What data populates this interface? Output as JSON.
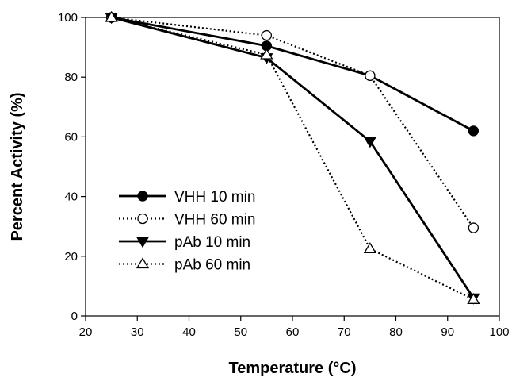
{
  "chart_data": {
    "type": "line",
    "title": "",
    "xlabel": "Temperature (°C)",
    "ylabel": "Percent Activity (%)",
    "xlim": [
      20,
      100
    ],
    "ylim": [
      0,
      100
    ],
    "xticks": [
      20,
      30,
      40,
      50,
      60,
      70,
      80,
      90,
      100
    ],
    "yticks": [
      0,
      20,
      40,
      60,
      80,
      100
    ],
    "grid": false,
    "legend_position": "lower-left",
    "series": [
      {
        "name": "VHH 10 min",
        "line": "solid",
        "marker": "circle-filled",
        "color": "#000000",
        "x": [
          25,
          55,
          75,
          95
        ],
        "y": [
          100,
          90.5,
          80.5,
          62
        ]
      },
      {
        "name": "VHH 60 min",
        "line": "dotted",
        "marker": "circle-open",
        "color": "#000000",
        "x": [
          25,
          55,
          75,
          95
        ],
        "y": [
          100,
          94,
          80.5,
          29.5
        ]
      },
      {
        "name": "pAb 10 min",
        "line": "solid",
        "marker": "triangle-down-filled",
        "color": "#000000",
        "x": [
          25,
          55,
          75,
          95
        ],
        "y": [
          100,
          86.5,
          58.5,
          6
        ]
      },
      {
        "name": "pAb 60 min",
        "line": "dotted",
        "marker": "triangle-up-open",
        "color": "#000000",
        "x": [
          25,
          55,
          75,
          95
        ],
        "y": [
          100,
          87.5,
          22.5,
          5.5
        ]
      }
    ]
  }
}
